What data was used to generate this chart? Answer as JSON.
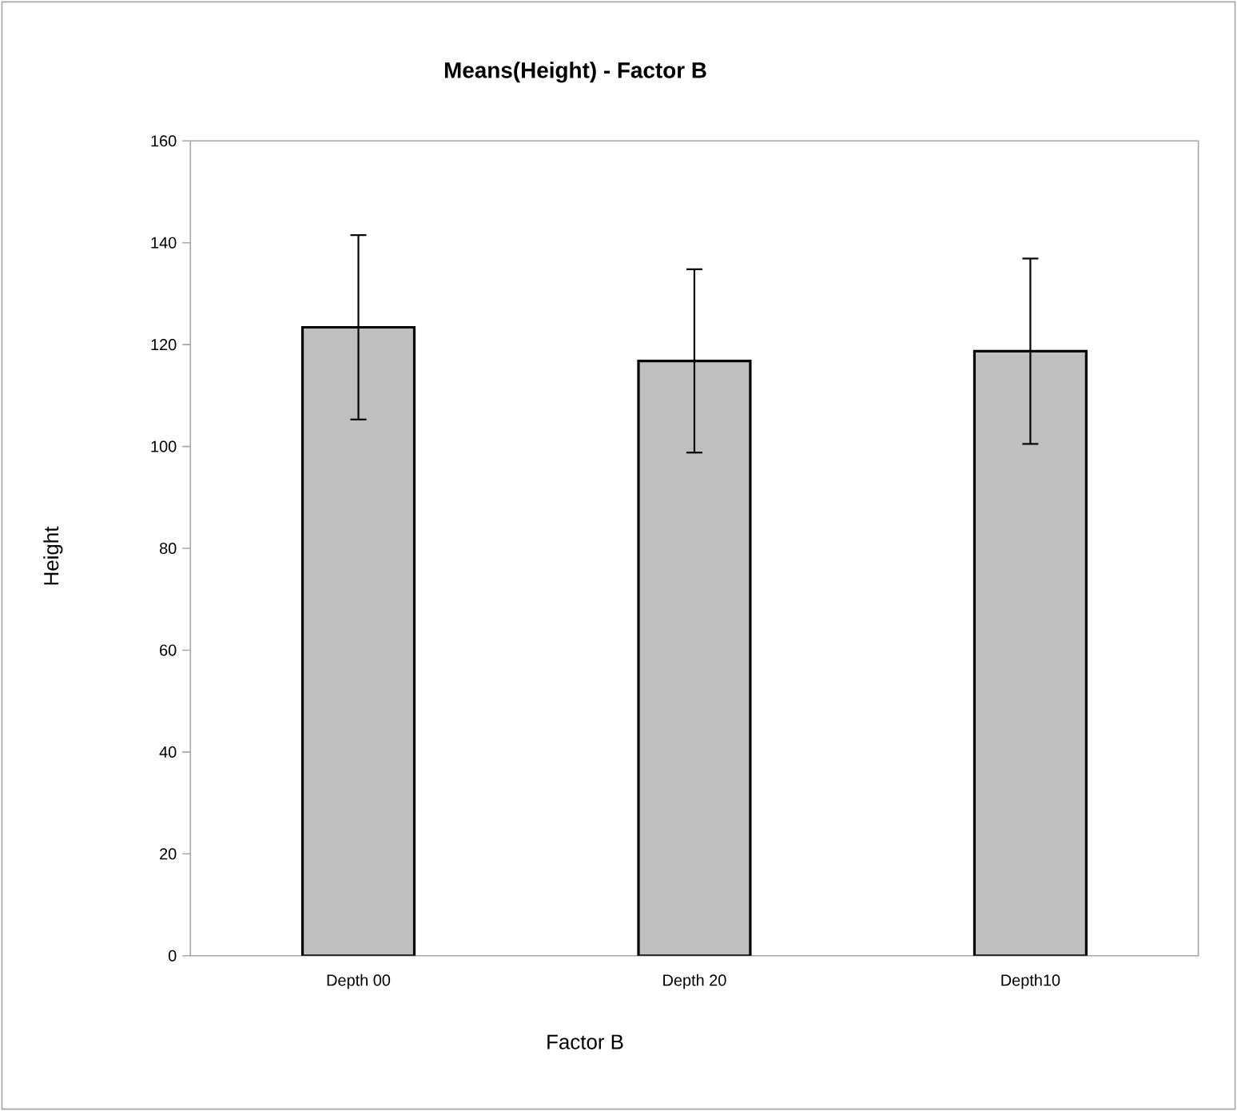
{
  "chart_data": {
    "type": "bar",
    "title": "Means(Height) - Factor B",
    "xlabel": "Factor B",
    "ylabel": "Height",
    "categories": [
      "Depth 00",
      "Depth 20",
      "Depth10"
    ],
    "values": [
      123.4,
      116.8,
      118.7
    ],
    "errors": [
      18.1,
      18.0,
      18.2
    ],
    "color": "#bfbfbf",
    "ylim": [
      0,
      160
    ],
    "yticks": [
      0,
      20,
      40,
      60,
      80,
      100,
      120,
      140,
      160
    ]
  }
}
